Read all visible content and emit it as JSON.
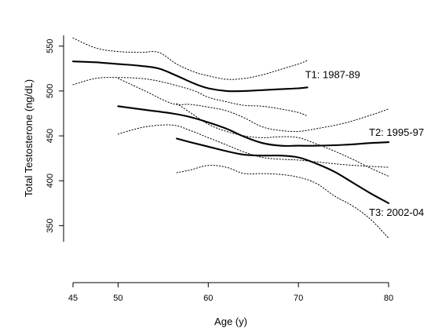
{
  "chart_data": {
    "type": "line",
    "xlabel": "Age (y)",
    "ylabel": "Total Testosterone (ng/dL)",
    "xlim": [
      45,
      80
    ],
    "ylim": [
      332,
      562
    ],
    "x_ticks": [
      45,
      50,
      60,
      70,
      80
    ],
    "y_ticks": [
      350,
      400,
      450,
      500,
      550
    ],
    "grid": false,
    "series": [
      {
        "name": "T1: 1987-89",
        "x": [
          45,
          47.5,
          50,
          52.5,
          54.5,
          56.5,
          58.5,
          60,
          62,
          64,
          66,
          68,
          70,
          71
        ],
        "values": [
          533,
          532,
          530,
          528,
          525,
          517,
          508,
          503,
          500,
          500,
          501,
          502,
          503,
          504
        ],
        "lower": [
          507,
          514,
          515,
          514,
          511,
          506,
          500,
          493,
          488,
          484,
          483,
          480,
          476,
          472
        ],
        "upper": [
          559,
          548,
          544,
          543,
          543,
          530,
          521,
          517,
          513,
          514,
          518,
          524,
          530,
          534
        ]
      },
      {
        "name": "T2: 1995-97",
        "x": [
          50,
          53,
          56,
          58,
          60,
          62,
          64,
          66,
          68,
          70,
          72,
          75,
          78,
          80
        ],
        "values": [
          483,
          479,
          475,
          471,
          465,
          458,
          449,
          442,
          439,
          439,
          439,
          440,
          442,
          443
        ],
        "lower": [
          452,
          460,
          462,
          456,
          448,
          440,
          432,
          426,
          424,
          423,
          421,
          418,
          416,
          415
        ],
        "upper": [
          514,
          500,
          486,
          485,
          482,
          478,
          470,
          460,
          456,
          455,
          458,
          464,
          473,
          480
        ]
      },
      {
        "name": "T3: 2002-04",
        "x": [
          56.5,
          58,
          60,
          62,
          64,
          66,
          68,
          70,
          72,
          74,
          76,
          78,
          80
        ],
        "values": [
          447,
          443,
          438,
          433,
          429,
          428,
          428,
          426,
          419,
          410,
          398,
          386,
          375
        ],
        "lower": [
          409,
          412,
          417,
          415,
          408,
          408,
          407,
          404,
          397,
          383,
          372,
          357,
          336
        ],
        "upper": [
          486,
          476,
          463,
          455,
          450,
          448,
          449,
          448,
          441,
          433,
          424,
          414,
          405
        ]
      }
    ]
  }
}
